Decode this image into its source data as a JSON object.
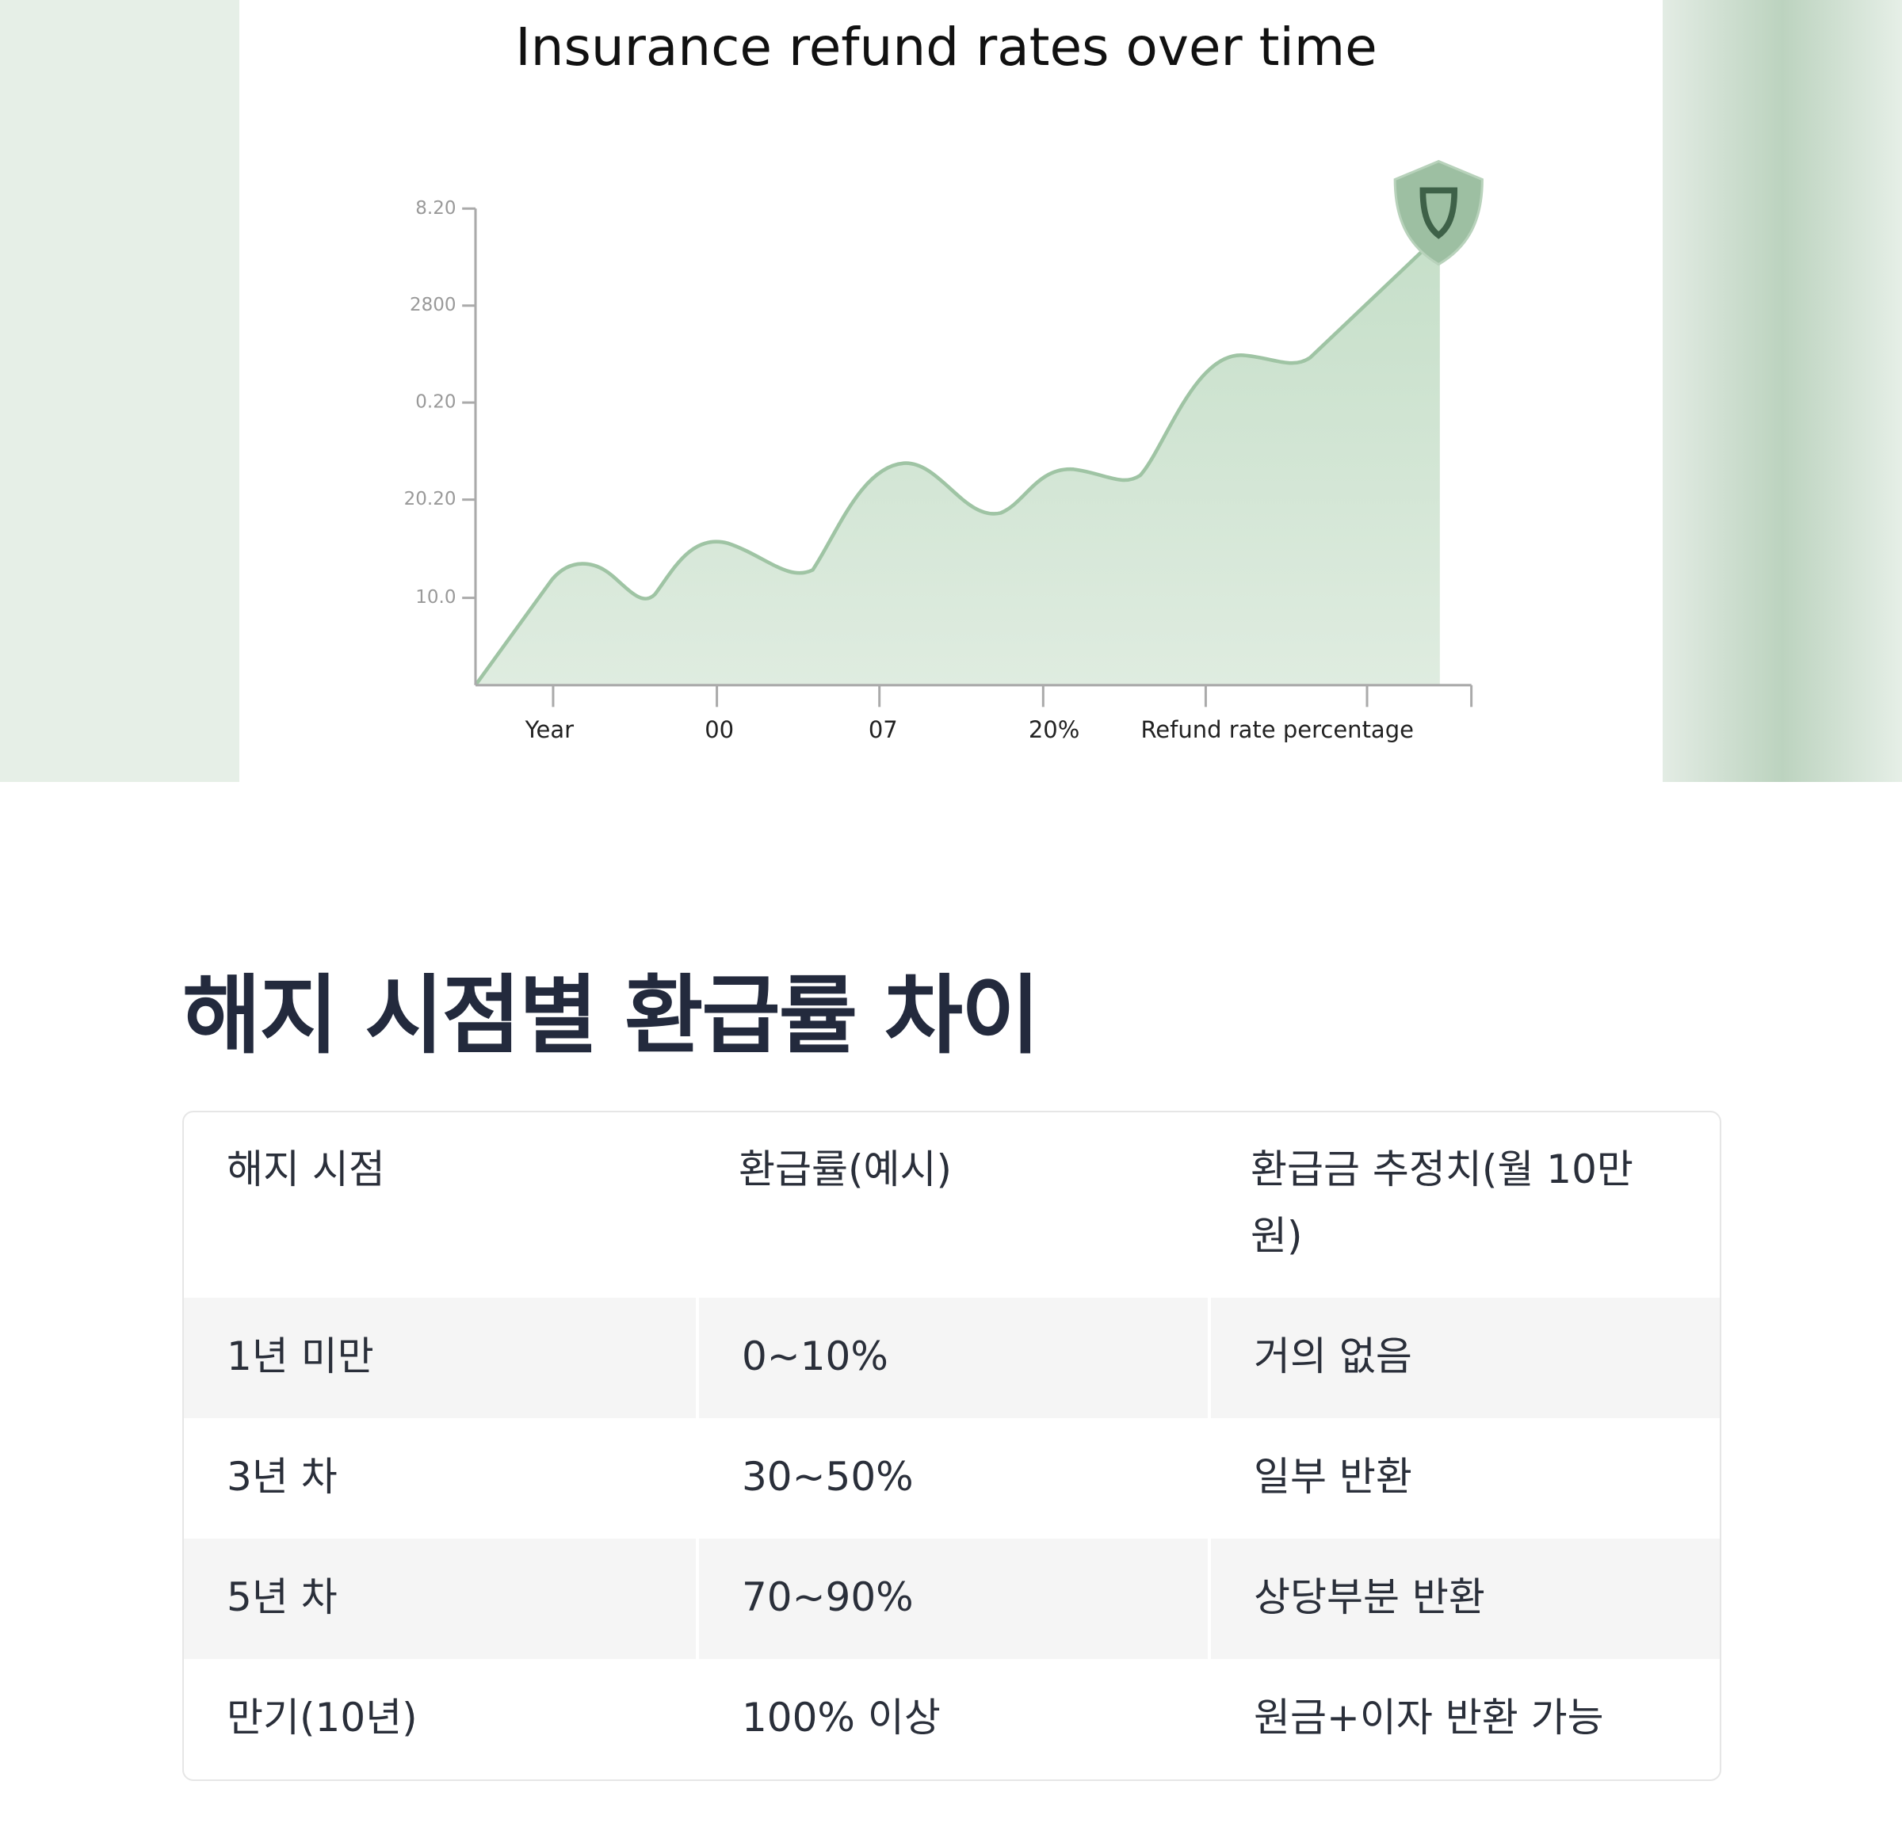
{
  "figure": {
    "title": "Insurance refund rates over time",
    "ylabels": [
      "8.20",
      "2800",
      "0.20",
      "20.20",
      "10.0"
    ],
    "xlabels": [
      "Year",
      "00",
      "07",
      "20%",
      "Refund rate percentage"
    ]
  },
  "heading": "해지 시점별 환급률 차이",
  "table": {
    "header": [
      "해지 시점",
      "환급률(예시)",
      "환급금 추정치(월 10만원)"
    ],
    "rows": [
      [
        "1년 미만",
        "0~10%",
        "거의 없음"
      ],
      [
        "3년 차",
        "30~50%",
        "일부 반환"
      ],
      [
        "5년 차",
        "70~90%",
        "상당부분 반환"
      ],
      [
        "만기(10년)",
        "100% 이상",
        "원금+이자 반환 가능"
      ]
    ]
  }
}
